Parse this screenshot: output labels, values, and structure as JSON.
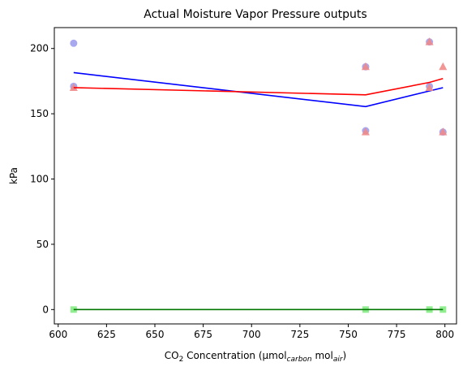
{
  "chart_data": {
    "type": "scatter",
    "title": "Actual Moisture Vapor Pressure outputs",
    "xlabel": {
      "prefix": "CO",
      "sub1": "2",
      "mid": " Concentration (µmol",
      "sub2": "carbon",
      "mid2": " mol",
      "sub3": "air",
      "suffix": ")"
    },
    "ylabel": "kPa",
    "xlim": [
      598,
      806
    ],
    "ylim": [
      -11,
      216
    ],
    "x_ticks": [
      600,
      625,
      650,
      675,
      700,
      725,
      750,
      775,
      800
    ],
    "y_ticks": [
      0,
      50,
      100,
      150,
      200
    ],
    "grid": false,
    "series": [
      {
        "color": "#0000ff",
        "points_color": "#9999ee",
        "marker": "circle",
        "points": [
          [
            608,
            204
          ],
          [
            608,
            171
          ],
          [
            759,
            186
          ],
          [
            759,
            137
          ],
          [
            792,
            205
          ],
          [
            792,
            171
          ],
          [
            799,
            136
          ]
        ],
        "line": [
          [
            608,
            181.5
          ],
          [
            759,
            155.5
          ],
          [
            799,
            170
          ]
        ]
      },
      {
        "color": "#ff0000",
        "points_color": "#f08a8a",
        "marker": "triangle",
        "points": [
          [
            608,
            170
          ],
          [
            759,
            186
          ],
          [
            759,
            136
          ],
          [
            792,
            205
          ],
          [
            792,
            170
          ],
          [
            799,
            186
          ],
          [
            799,
            136
          ]
        ],
        "line": [
          [
            608,
            170
          ],
          [
            759,
            164.5
          ],
          [
            792,
            174
          ],
          [
            799,
            177
          ]
        ]
      },
      {
        "color": "#007700",
        "points_color": "#90ee90",
        "marker": "square",
        "points": [
          [
            608,
            0
          ],
          [
            759,
            0
          ],
          [
            792,
            0
          ],
          [
            799,
            0
          ]
        ],
        "line": [
          [
            608,
            0
          ],
          [
            799,
            0
          ]
        ]
      }
    ]
  }
}
